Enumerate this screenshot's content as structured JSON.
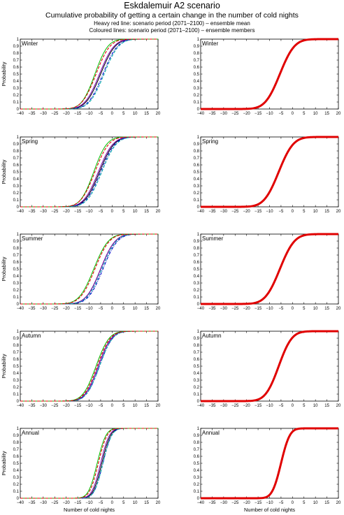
{
  "header": {
    "title": "Eskdalemuir A2 scenario",
    "subtitle": "Cumulative probability of getting a certain change in the number of cold nights",
    "note1": "Heavy red line: scenario period (2071–2100) – ensemble mean",
    "note2": "Coloured lines: scenario period (2071–2100) – ensemble members"
  },
  "colors": {
    "mean": "#e00000",
    "members": [
      "#000000",
      "#0000cc",
      "#7a00b0",
      "#00a8a8",
      "#00c000",
      "#e00000"
    ]
  },
  "chart_data": [
    {
      "type": "line",
      "panel": "ensemble-members",
      "season": "Winter",
      "ylabel": "Probability",
      "xlabel": "",
      "xlim": [
        -40,
        20
      ],
      "ylim": [
        0,
        1
      ],
      "xticks": [
        "−40",
        "−35",
        "−30",
        "−25",
        "−20",
        "−15",
        "−10",
        "−5",
        "0",
        "5",
        "10",
        "15",
        "20"
      ],
      "yticks": [
        "0",
        "0.1",
        "0.2",
        "0.3",
        "0.4",
        "0.5",
        "0.6",
        "0.7",
        "0.8",
        "0.9",
        "1"
      ],
      "series": [
        {
          "color": "#000000",
          "style": "solid",
          "mean": -5,
          "sd": 5
        },
        {
          "color": "#0000cc",
          "style": "dashdot",
          "mean": -4,
          "sd": 5
        },
        {
          "color": "#7a00b0",
          "style": "solid",
          "mean": -5.5,
          "sd": 5
        },
        {
          "color": "#00a8a8",
          "style": "dashed",
          "mean": -3.5,
          "sd": 5
        },
        {
          "color": "#00c000",
          "style": "solid",
          "mean": -7.5,
          "sd": 4.5
        },
        {
          "color": "#e00000",
          "style": "dashed",
          "mean": -7,
          "sd": 4.8
        }
      ]
    },
    {
      "type": "line",
      "panel": "ensemble-mean",
      "season": "Winter",
      "ylabel": "",
      "xlabel": "",
      "xlim": [
        -40,
        20
      ],
      "ylim": [
        0,
        1
      ],
      "xticks": [
        "−40",
        "−35",
        "−30",
        "−25",
        "−20",
        "−15",
        "−10",
        "−5",
        "0",
        "5",
        "10",
        "15",
        "20"
      ],
      "yticks": [
        "0",
        "0.1",
        "0.2",
        "0.3",
        "0.4",
        "0.5",
        "0.6",
        "0.7",
        "0.8",
        "0.9",
        "1"
      ],
      "series": [
        {
          "color": "#e00000",
          "style": "heavy",
          "mean": -5.5,
          "sd": 5
        }
      ]
    },
    {
      "type": "line",
      "panel": "ensemble-members",
      "season": "Spring",
      "ylabel": "Probability",
      "xlabel": "",
      "xlim": [
        -40,
        20
      ],
      "ylim": [
        0,
        1
      ],
      "xticks": [
        "−40",
        "−35",
        "−30",
        "−25",
        "−20",
        "−15",
        "−10",
        "−5",
        "0",
        "5",
        "10",
        "15",
        "20"
      ],
      "yticks": [
        "0",
        "0.1",
        "0.2",
        "0.3",
        "0.4",
        "0.5",
        "0.6",
        "0.7",
        "0.8",
        "0.9",
        "1"
      ],
      "series": [
        {
          "color": "#000000",
          "style": "solid",
          "mean": -5.5,
          "sd": 5
        },
        {
          "color": "#0000cc",
          "style": "dashdot",
          "mean": -5,
          "sd": 5
        },
        {
          "color": "#7a00b0",
          "style": "solid",
          "mean": -6,
          "sd": 5
        },
        {
          "color": "#00a8a8",
          "style": "dashed",
          "mean": -4.5,
          "sd": 5
        },
        {
          "color": "#00c000",
          "style": "solid",
          "mean": -8,
          "sd": 4.5
        },
        {
          "color": "#e00000",
          "style": "dashed",
          "mean": -7.5,
          "sd": 4.8
        }
      ]
    },
    {
      "type": "line",
      "panel": "ensemble-mean",
      "season": "Spring",
      "ylabel": "",
      "xlabel": "",
      "xlim": [
        -40,
        20
      ],
      "ylim": [
        0,
        1
      ],
      "xticks": [
        "−40",
        "−35",
        "−30",
        "−25",
        "−20",
        "−15",
        "−10",
        "−5",
        "0",
        "5",
        "10",
        "15",
        "20"
      ],
      "yticks": [
        "0",
        "0.1",
        "0.2",
        "0.3",
        "0.4",
        "0.5",
        "0.6",
        "0.7",
        "0.8",
        "0.9",
        "1"
      ],
      "series": [
        {
          "color": "#e00000",
          "style": "heavy",
          "mean": -6,
          "sd": 5
        }
      ]
    },
    {
      "type": "line",
      "panel": "ensemble-members",
      "season": "Summer",
      "ylabel": "Probability",
      "xlabel": "",
      "xlim": [
        -40,
        20
      ],
      "ylim": [
        0,
        1
      ],
      "xticks": [
        "−40",
        "−35",
        "−30",
        "−25",
        "−20",
        "−15",
        "−10",
        "−5",
        "0",
        "5",
        "10",
        "15",
        "20"
      ],
      "yticks": [
        "0",
        "0.1",
        "0.2",
        "0.3",
        "0.4",
        "0.5",
        "0.6",
        "0.7",
        "0.8",
        "0.9",
        "1"
      ],
      "series": [
        {
          "color": "#000000",
          "style": "solid",
          "mean": -5,
          "sd": 5
        },
        {
          "color": "#0000cc",
          "style": "dashdot",
          "mean": -4,
          "sd": 5
        },
        {
          "color": "#7a00b0",
          "style": "solid",
          "mean": -5,
          "sd": 5
        },
        {
          "color": "#00a8a8",
          "style": "dashed",
          "mean": -4.5,
          "sd": 5
        },
        {
          "color": "#00c000",
          "style": "solid",
          "mean": -8,
          "sd": 5
        },
        {
          "color": "#e00000",
          "style": "dashed",
          "mean": -7.5,
          "sd": 5
        }
      ]
    },
    {
      "type": "line",
      "panel": "ensemble-mean",
      "season": "Summer",
      "ylabel": "",
      "xlabel": "",
      "xlim": [
        -40,
        20
      ],
      "ylim": [
        0,
        1
      ],
      "xticks": [
        "−40",
        "−35",
        "−30",
        "−25",
        "−20",
        "−15",
        "−10",
        "−5",
        "0",
        "5",
        "10",
        "15",
        "20"
      ],
      "yticks": [
        "0",
        "0.1",
        "0.2",
        "0.3",
        "0.4",
        "0.5",
        "0.6",
        "0.7",
        "0.8",
        "0.9",
        "1"
      ],
      "series": [
        {
          "color": "#e00000",
          "style": "heavy",
          "mean": -5.5,
          "sd": 5
        }
      ]
    },
    {
      "type": "line",
      "panel": "ensemble-members",
      "season": "Autumn",
      "ylabel": "Probability",
      "xlabel": "",
      "xlim": [
        -40,
        20
      ],
      "ylim": [
        0,
        1
      ],
      "xticks": [
        "−40",
        "−35",
        "−30",
        "−25",
        "−20",
        "−15",
        "−10",
        "−5",
        "0",
        "5",
        "10",
        "15",
        "20"
      ],
      "yticks": [
        "0",
        "0.1",
        "0.2",
        "0.3",
        "0.4",
        "0.5",
        "0.6",
        "0.7",
        "0.8",
        "0.9",
        "1"
      ],
      "series": [
        {
          "color": "#000000",
          "style": "solid",
          "mean": -6,
          "sd": 4.5
        },
        {
          "color": "#0000cc",
          "style": "dashdot",
          "mean": -5.5,
          "sd": 4.5
        },
        {
          "color": "#7a00b0",
          "style": "solid",
          "mean": -6,
          "sd": 4.5
        },
        {
          "color": "#00a8a8",
          "style": "dashed",
          "mean": -5.5,
          "sd": 4.5
        },
        {
          "color": "#00c000",
          "style": "solid",
          "mean": -7,
          "sd": 4.5
        },
        {
          "color": "#e00000",
          "style": "dashed",
          "mean": -6.5,
          "sd": 4.5
        }
      ]
    },
    {
      "type": "line",
      "panel": "ensemble-mean",
      "season": "Autumn",
      "ylabel": "",
      "xlabel": "",
      "xlim": [
        -40,
        20
      ],
      "ylim": [
        0,
        1
      ],
      "xticks": [
        "−40",
        "−35",
        "−30",
        "−25",
        "−20",
        "−15",
        "−10",
        "−5",
        "0",
        "5",
        "10",
        "15",
        "20"
      ],
      "yticks": [
        "0",
        "0.1",
        "0.2",
        "0.3",
        "0.4",
        "0.5",
        "0.6",
        "0.7",
        "0.8",
        "0.9",
        "1"
      ],
      "series": [
        {
          "color": "#e00000",
          "style": "heavy",
          "mean": -6,
          "sd": 4.5
        }
      ]
    },
    {
      "type": "line",
      "panel": "ensemble-members",
      "season": "Annual",
      "ylabel": "Probability",
      "xlabel": "Number of cold nights",
      "xlim": [
        -40,
        20
      ],
      "ylim": [
        0,
        1
      ],
      "xticks": [
        "−40",
        "−35",
        "−30",
        "−25",
        "−20",
        "−15",
        "−10",
        "−5",
        "0",
        "5",
        "10",
        "15",
        "20"
      ],
      "yticks": [
        "0",
        "0.1",
        "0.2",
        "0.3",
        "0.4",
        "0.5",
        "0.6",
        "0.7",
        "0.8",
        "0.9",
        "1"
      ],
      "series": [
        {
          "color": "#000000",
          "style": "solid",
          "mean": -4.5,
          "sd": 3
        },
        {
          "color": "#0000cc",
          "style": "dashdot",
          "mean": -4,
          "sd": 3
        },
        {
          "color": "#7a00b0",
          "style": "solid",
          "mean": -5,
          "sd": 3
        },
        {
          "color": "#00a8a8",
          "style": "dashed",
          "mean": -4,
          "sd": 3
        },
        {
          "color": "#00c000",
          "style": "solid",
          "mean": -6.5,
          "sd": 3
        },
        {
          "color": "#e00000",
          "style": "dashed",
          "mean": -6,
          "sd": 3
        }
      ]
    },
    {
      "type": "line",
      "panel": "ensemble-mean",
      "season": "Annual",
      "ylabel": "",
      "xlabel": "Number of cold nights",
      "xlim": [
        -40,
        20
      ],
      "ylim": [
        0,
        1
      ],
      "xticks": [
        "−40",
        "−35",
        "−30",
        "−25",
        "−20",
        "−15",
        "−10",
        "−5",
        "0",
        "5",
        "10",
        "15",
        "20"
      ],
      "yticks": [
        "0",
        "0.1",
        "0.2",
        "0.3",
        "0.4",
        "0.5",
        "0.6",
        "0.7",
        "0.8",
        "0.9",
        "1"
      ],
      "series": [
        {
          "color": "#e00000",
          "style": "heavy",
          "mean": -5,
          "sd": 3
        }
      ]
    }
  ]
}
